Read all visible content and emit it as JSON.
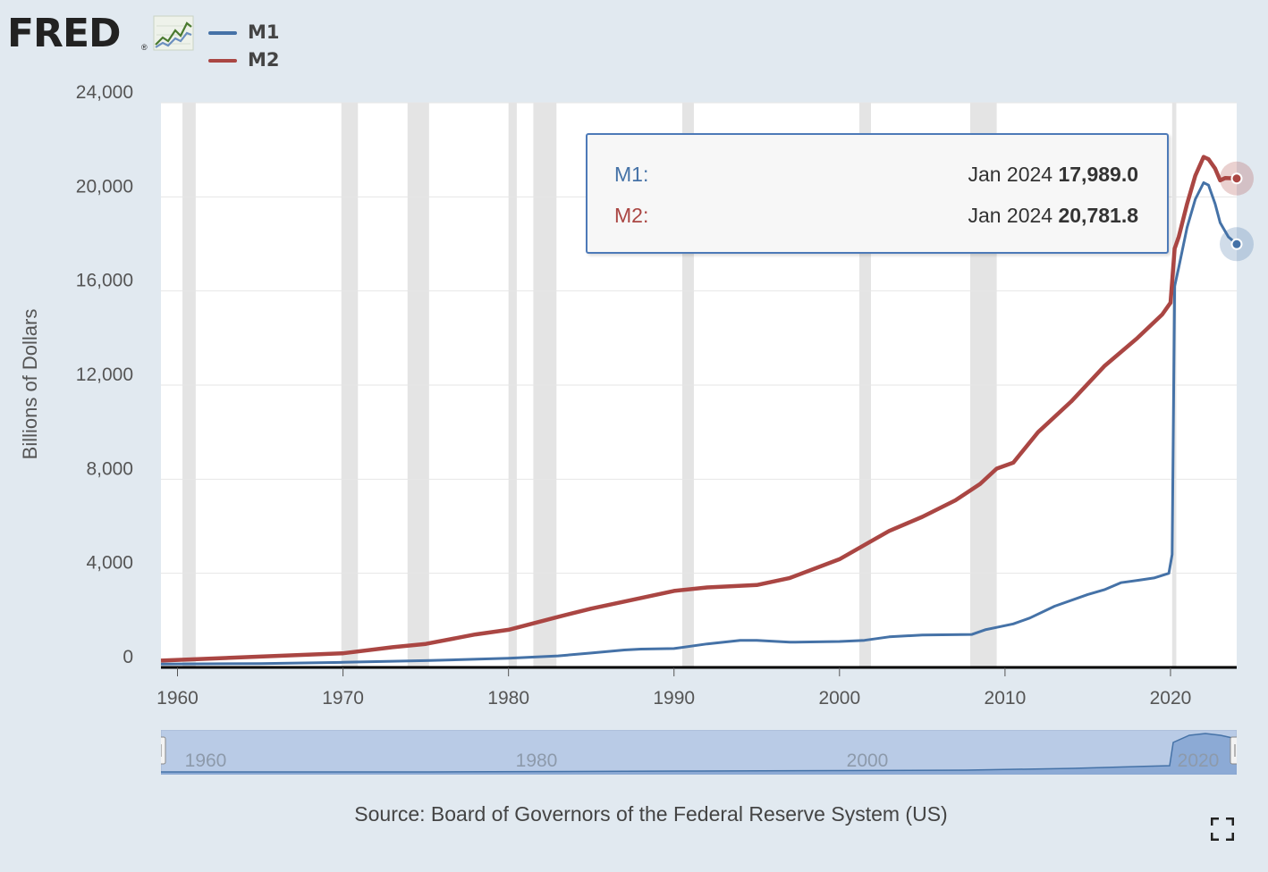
{
  "brand": {
    "logo_text": "FRED",
    "reg_mark": "®",
    "logo_icon": "line-graph-icon"
  },
  "legend": [
    {
      "label": "M1",
      "color": "#4572a7"
    },
    {
      "label": "M2",
      "color": "#aa4643"
    }
  ],
  "tooltip": {
    "rows": [
      {
        "name": "M1:",
        "date": "Jan 2024",
        "value": "17,989.0",
        "color": "#4572a7"
      },
      {
        "name": "M2:",
        "date": "Jan 2024",
        "value": "20,781.8",
        "color": "#aa4643"
      }
    ]
  },
  "navigator": {
    "tick_labels": [
      "1960",
      "1980",
      "2000",
      "2020"
    ]
  },
  "source": "Source: Board of Governors of the Federal Reserve System (US)",
  "icons": {
    "fullscreen": "fullscreen-icon"
  },
  "chart_data": {
    "type": "line",
    "title": "",
    "xlabel": "",
    "ylabel": "Billions of Dollars",
    "xlim": [
      1959.0,
      2024.0
    ],
    "ylim": [
      0,
      24000
    ],
    "xticks": [
      1960,
      1970,
      1980,
      1990,
      2000,
      2010,
      2020
    ],
    "xtick_labels": [
      "1960",
      "1970",
      "1980",
      "1990",
      "2000",
      "2010",
      "2020"
    ],
    "yticks": [
      0,
      4000,
      8000,
      12000,
      16000,
      20000,
      24000
    ],
    "ytick_labels": [
      "0",
      "4,000",
      "8,000",
      "12,000",
      "16,000",
      "20,000",
      "24,000"
    ],
    "grid": true,
    "legend_position": "top-left",
    "recessions": [
      [
        1960.3,
        1961.1
      ],
      [
        1969.9,
        1970.9
      ],
      [
        1973.9,
        1975.2
      ],
      [
        1980.0,
        1980.5
      ],
      [
        1981.5,
        1982.9
      ],
      [
        1990.5,
        1991.2
      ],
      [
        2001.2,
        2001.9
      ],
      [
        2007.9,
        2009.5
      ],
      [
        2020.1,
        2020.35
      ]
    ],
    "series": [
      {
        "name": "M1",
        "color": "#4572a7",
        "x": [
          1959.0,
          1965,
          1970,
          1975,
          1980,
          1983,
          1985,
          1987,
          1988,
          1990,
          1992,
          1994,
          1995,
          1997,
          2000,
          2001.5,
          2003,
          2005,
          2008,
          2008.8,
          2009.5,
          2010.5,
          2011.5,
          2013,
          2015,
          2016,
          2017,
          2018,
          2019,
          2019.9,
          2020.1,
          2020.25,
          2020.5,
          2021,
          2021.5,
          2022.0,
          2022.3,
          2022.7,
          2023.0,
          2023.5,
          2024.0
        ],
        "y": [
          140,
          165,
          215,
          290,
          390,
          490,
          610,
          740,
          780,
          800,
          1000,
          1150,
          1150,
          1070,
          1100,
          1150,
          1300,
          1380,
          1400,
          1600,
          1700,
          1850,
          2100,
          2600,
          3100,
          3300,
          3600,
          3700,
          3800,
          4000,
          4800,
          16200,
          17000,
          18700,
          19900,
          20600,
          20500,
          19700,
          18900,
          18300,
          17989.0
        ]
      },
      {
        "name": "M2",
        "color": "#aa4643",
        "x": [
          1959.0,
          1965,
          1970,
          1973,
          1975,
          1978,
          1980,
          1983,
          1985,
          1987,
          1990,
          1992,
          1995,
          1997,
          2000,
          2001.5,
          2003,
          2005,
          2007,
          2008.5,
          2009.5,
          2010.5,
          2012,
          2014,
          2016,
          2018,
          2019.5,
          2020.0,
          2020.25,
          2020.5,
          2021,
          2021.5,
          2022.0,
          2022.3,
          2022.7,
          2023.0,
          2023.3,
          2024.0
        ],
        "y": [
          290,
          460,
          600,
          860,
          1000,
          1400,
          1600,
          2150,
          2500,
          2800,
          3250,
          3400,
          3500,
          3800,
          4600,
          5200,
          5800,
          6400,
          7100,
          7800,
          8450,
          8700,
          10000,
          11300,
          12800,
          14000,
          15000,
          15500,
          17800,
          18300,
          19700,
          20900,
          21700,
          21600,
          21200,
          20700,
          20800,
          20781.8
        ]
      }
    ]
  }
}
